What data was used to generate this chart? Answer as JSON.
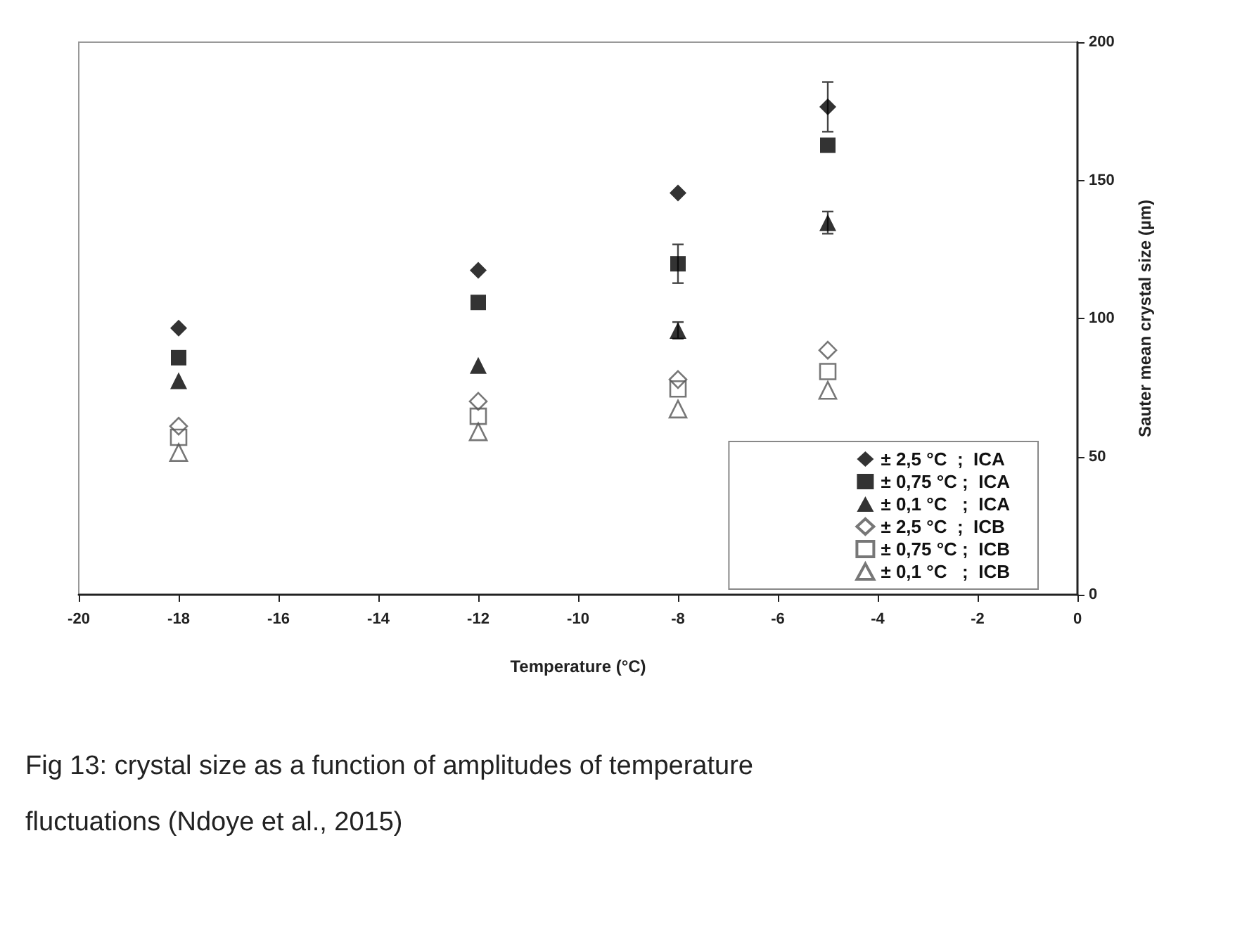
{
  "chart_data": {
    "type": "scatter",
    "xlabel": "Temperature (°C)",
    "ylabel": "Sauter mean crystal size (µm)",
    "x": [
      -18,
      -12,
      -8,
      -5
    ],
    "xlim": [
      -20,
      0
    ],
    "xticks": [
      -20,
      -18,
      -16,
      -14,
      -12,
      -10,
      -8,
      -6,
      -4,
      -2,
      0
    ],
    "ylim": [
      0,
      200
    ],
    "yticks": [
      0,
      50,
      100,
      150,
      200
    ],
    "grid": false,
    "legend": "bottom right",
    "series": [
      {
        "name": "± 2,5 °C  ;  ICA",
        "color": "#000000",
        "marker": "diamond",
        "values": [
          96.5,
          117.4,
          145.4,
          176.6
        ],
        "errors": [
          null,
          null,
          null,
          9
        ]
      },
      {
        "name": "± 0,75 °C ;  ICA",
        "color": "#000000",
        "marker": "square",
        "values": [
          85.8,
          105.8,
          119.8,
          162.7
        ],
        "errors": [
          null,
          null,
          7,
          null
        ]
      },
      {
        "name": "± 0,1 °C   ;  ICA",
        "color": "#000000",
        "marker": "triangle",
        "values": [
          77.5,
          83,
          95.7,
          134.7
        ],
        "errors": [
          null,
          null,
          3,
          4
        ]
      },
      {
        "name": "± 2,5 °C  ;  ICB",
        "color": "#555555",
        "marker": "diamond",
        "values": [
          61,
          70,
          77.9,
          88.5
        ]
      },
      {
        "name": "± 0,75 °C ;  ICB",
        "color": "#555555",
        "marker": "square",
        "values": [
          57,
          64.6,
          74.5,
          80.8
        ]
      },
      {
        "name": "± 0,1 °C   ;  ICB",
        "color": "#555555",
        "marker": "triangle",
        "values": [
          51.5,
          59,
          67.2,
          74
        ]
      }
    ],
    "annotations": [
      "Fig 13: crystal size as a function of amplitudes of temperature fluctuations (Ndoye et al., 2015)"
    ]
  }
}
